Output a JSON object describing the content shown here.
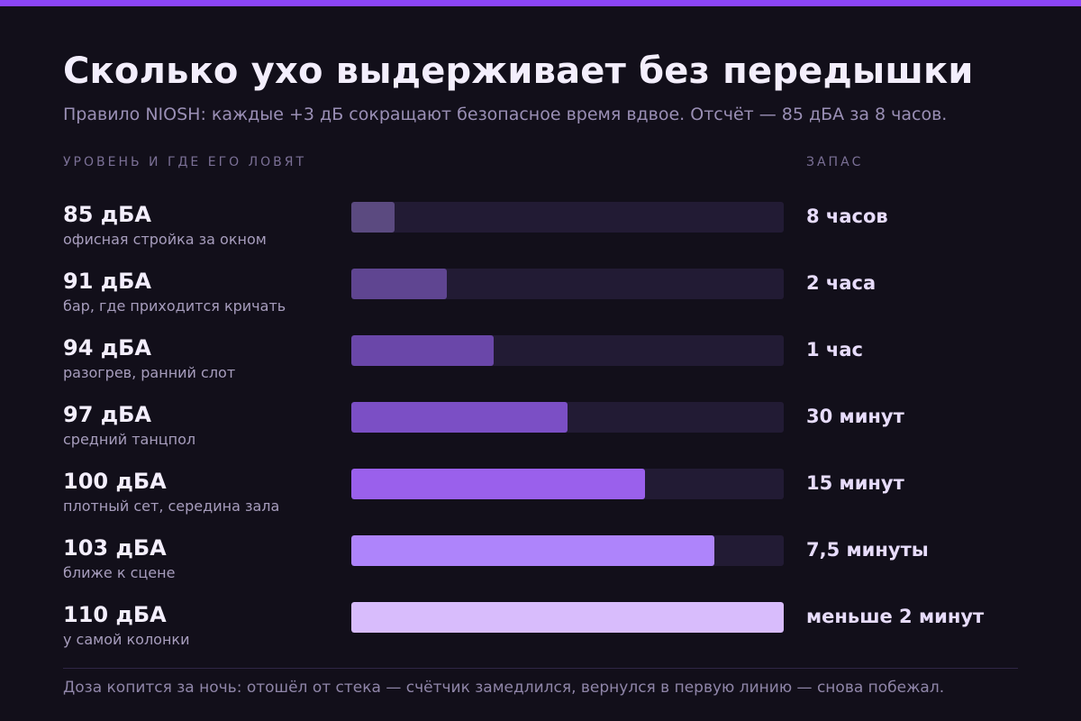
{
  "title": "Сколько ухо выдерживает без передышки",
  "subtitle": "Правило NIOSH: каждые +3 дБ сокращают безопасное время вдвое. Отсчёт — 85 дБА за 8 часов.",
  "headers": {
    "left": "УРОВЕНЬ И ГДЕ ЕГО ЛОВЯТ",
    "right": "ЗАПАС"
  },
  "rows": [
    {
      "level": "85 дБА",
      "place": "офисная стройка за окном",
      "time": "8 часов",
      "fill": 0.1,
      "color": "#5b4a80"
    },
    {
      "level": "91 дБА",
      "place": "бар, где приходится кричать",
      "time": "2 часа",
      "fill": 0.22,
      "color": "#5f4591"
    },
    {
      "level": "94 дБА",
      "place": "разогрев, ранний слот",
      "time": "1 час",
      "fill": 0.33,
      "color": "#6a47a9"
    },
    {
      "level": "97 дБА",
      "place": "средний танцпол",
      "time": "30 минут",
      "fill": 0.5,
      "color": "#7b4fc5"
    },
    {
      "level": "100 дБА",
      "place": "плотный сет, середина зала",
      "time": "15 минут",
      "fill": 0.68,
      "color": "#9a60ec"
    },
    {
      "level": "103 дБА",
      "place": "ближе к сцене",
      "time": "7,5 минуты",
      "fill": 0.84,
      "color": "#ae84fb"
    },
    {
      "level": "110 дБА",
      "place": "у самой колонки",
      "time": "меньше 2 минут",
      "fill": 1.0,
      "color": "#d8bcfc"
    }
  ],
  "footnote": "Доза копится за ночь: отошёл от стека — счётчик замедлился, вернулся в первую линию — снова побежал.",
  "colors": {
    "accent": "#8b45f6",
    "background": "#120f1a",
    "track": "#221b34"
  },
  "chart_data": {
    "type": "bar",
    "orientation": "horizontal",
    "categories": [
      "85 дБА",
      "91 дБА",
      "94 дБА",
      "97 дБА",
      "100 дБА",
      "103 дБА",
      "110 дБА"
    ],
    "values": [
      0.1,
      0.22,
      0.33,
      0.5,
      0.68,
      0.84,
      1.0
    ],
    "value_labels": [
      "8 часов",
      "2 часа",
      "1 час",
      "30 минут",
      "15 минут",
      "7,5 минуты",
      "меньше 2 минут"
    ],
    "title": "Сколько ухо выдерживает без передышки",
    "xlabel": "",
    "ylabel": "",
    "xlim": [
      0,
      1
    ],
    "grid": false,
    "legend": "none"
  }
}
